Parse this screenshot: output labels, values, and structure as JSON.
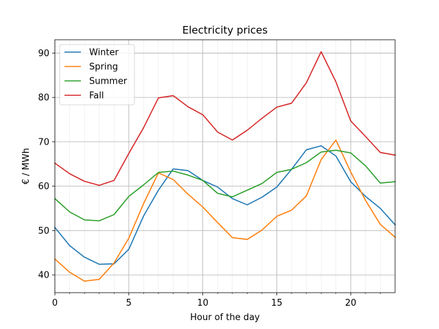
{
  "chart_data": {
    "type": "line",
    "title": "Electricity prices",
    "xlabel": "Hour of the day",
    "ylabel": "€ / MWh",
    "xlim": [
      0,
      23
    ],
    "ylim": [
      36,
      93
    ],
    "x_ticks_major": [
      0,
      5,
      10,
      15,
      20
    ],
    "x_ticks_minor": [
      1,
      2,
      3,
      4,
      6,
      7,
      8,
      9,
      11,
      12,
      13,
      14,
      16,
      17,
      18,
      19,
      21,
      22
    ],
    "y_ticks": [
      40,
      50,
      60,
      70,
      80,
      90
    ],
    "grid": "on",
    "legend_position": "top-left",
    "x": [
      0,
      1,
      2,
      3,
      4,
      5,
      6,
      7,
      8,
      9,
      10,
      11,
      12,
      13,
      14,
      15,
      16,
      17,
      18,
      19,
      20,
      21,
      22,
      23
    ],
    "series": [
      {
        "name": "Winter",
        "color": "#1f77b4",
        "values": [
          50.7,
          46.6,
          44.0,
          42.4,
          42.5,
          45.8,
          53.3,
          59.1,
          63.9,
          63.5,
          61.3,
          59.8,
          57.2,
          55.8,
          57.5,
          59.8,
          63.8,
          68.2,
          69.1,
          66.8,
          61.0,
          57.7,
          55.0,
          51.3
        ]
      },
      {
        "name": "Spring",
        "color": "#ff7f0e",
        "values": [
          43.6,
          40.6,
          38.6,
          39.0,
          42.7,
          48.3,
          56.1,
          63.0,
          61.5,
          58.2,
          55.3,
          51.8,
          48.4,
          48.0,
          50.1,
          53.2,
          54.6,
          57.8,
          66.0,
          70.4,
          63.2,
          56.8,
          51.4,
          48.5
        ]
      },
      {
        "name": "Summer",
        "color": "#2ca02c",
        "values": [
          57.2,
          54.2,
          52.4,
          52.2,
          53.6,
          57.7,
          60.3,
          63.1,
          63.4,
          62.5,
          61.3,
          58.4,
          57.6,
          59.1,
          60.6,
          63.1,
          63.8,
          65.3,
          67.7,
          68.1,
          67.5,
          64.6,
          60.7,
          61.0
        ]
      },
      {
        "name": "Fall",
        "color": "#d62728",
        "values": [
          65.2,
          62.8,
          61.1,
          60.2,
          61.3,
          67.4,
          73.2,
          79.9,
          80.4,
          77.9,
          76.1,
          72.2,
          70.4,
          72.6,
          75.3,
          77.8,
          78.7,
          83.3,
          90.3,
          83.5,
          74.7,
          71.2,
          67.6,
          67.0
        ]
      }
    ]
  }
}
